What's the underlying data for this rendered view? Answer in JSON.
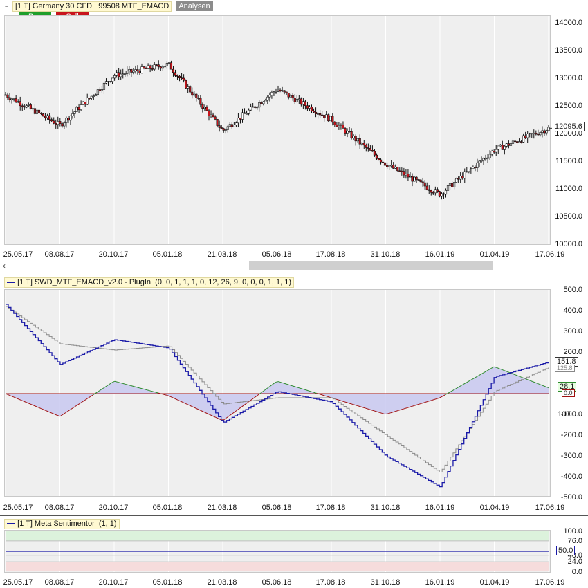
{
  "header": {
    "toggle_icon": "minus-box-icon",
    "title": "[1 T] Germany 30 CFD",
    "code": "99508 MTF_EMACD",
    "analysen": "Analysen"
  },
  "buttons": {
    "buy": "Buy",
    "sell": "Sell"
  },
  "dates": [
    "25.05.17",
    "08.08.17",
    "20.10.17",
    "05.01.18",
    "21.03.18",
    "05.06.18",
    "17.08.18",
    "31.10.18",
    "16.01.19",
    "01.04.19",
    "17.06.19"
  ],
  "price_panel": {
    "yticks": [
      "14000.0",
      "13500.0",
      "13000.0",
      "12500.0",
      "12000.0",
      "11500.0",
      "11000.0",
      "10500.0",
      "10000.0"
    ],
    "last_value": "12095.6",
    "scroll_left_icon": "chevron-left-icon"
  },
  "emacd_panel": {
    "title": "[1 T] SWD_MTF_EMACD_v2.0 - PlugIn",
    "params": "(0, 0, 1, 1, 1, 0, 12, 26, 9, 0, 0, 0, 1, 1, 1)",
    "yticks": [
      "500.0",
      "400.0",
      "300.0",
      "200.0",
      "100.0",
      "0.0",
      "-100.0",
      "-200.0",
      "-300.0",
      "-400.0",
      "-500.0"
    ],
    "badge_blue": "151.8",
    "badge_gray": "125.8",
    "badge_green": "28.1",
    "badge_zero": "0.0"
  },
  "sentimentor_panel": {
    "title": "[1 T] Meta Sentimentor",
    "params": "(1, 1)",
    "yticks": [
      "100.0",
      "76.0",
      "50.0",
      "40.0",
      "24.0",
      "0.0"
    ],
    "last_value": "50.0"
  },
  "colors": {
    "plot_bg": "#efefef",
    "up_candle": "#ffffff",
    "down_candle": "#c8141c",
    "emacd_blue": "#1a1aa8",
    "emacd_gray": "#8a8a8a",
    "hist_green": "#2e8b2e",
    "hist_red": "#a01010",
    "hist_fill": "#c8c8f0",
    "buy": "#1f9e2a",
    "sell": "#c8141c",
    "analysen_bg": "#8c8c8c"
  },
  "chart_data": [
    {
      "type": "candlestick",
      "title": "[1 T] Germany 30 CFD",
      "x": [
        "25.05.17",
        "08.08.17",
        "20.10.17",
        "05.01.18",
        "21.03.18",
        "05.06.18",
        "17.08.18",
        "31.10.18",
        "16.01.19",
        "01.04.19",
        "17.06.19"
      ],
      "close": [
        12700,
        12150,
        13050,
        13250,
        12050,
        12800,
        12250,
        11450,
        10900,
        11700,
        12095.6
      ],
      "ylim": [
        10000,
        14000
      ],
      "last": 12095.6
    },
    {
      "type": "line",
      "title": "[1 T] SWD_MTF_EMACD_v2.0 - PlugIn",
      "x": [
        "25.05.17",
        "08.08.17",
        "20.10.17",
        "05.01.18",
        "21.03.18",
        "05.06.18",
        "17.08.18",
        "31.10.18",
        "16.01.19",
        "01.04.19",
        "17.06.19"
      ],
      "series": [
        {
          "values": [
            430,
            140,
            260,
            220,
            -140,
            10,
            -40,
            -300,
            -450,
            80,
            151.8
          ]
        },
        {
          "values": [
            420,
            240,
            210,
            230,
            -50,
            -20,
            -20,
            -200,
            -380,
            10,
            125.8
          ]
        },
        {
          "values": [
            0,
            -110,
            60,
            -10,
            -130,
            60,
            -20,
            -100,
            -20,
            130,
            28.1
          ]
        }
      ],
      "ylim": [
        -500,
        500
      ]
    },
    {
      "type": "line",
      "title": "[1 T] Meta Sentimentor",
      "x": [
        "25.05.17",
        "08.08.17",
        "20.10.17",
        "05.01.18",
        "21.03.18",
        "05.06.18",
        "17.08.18",
        "31.10.18",
        "16.01.19",
        "01.04.19",
        "17.06.19"
      ],
      "series": [
        {
          "values": [
            50,
            50,
            50,
            50,
            50,
            50,
            50,
            50,
            50,
            50,
            50
          ]
        }
      ],
      "ylim": [
        0,
        100
      ],
      "bands": [
        [
          76,
          100
        ],
        [
          0,
          24
        ]
      ]
    }
  ]
}
